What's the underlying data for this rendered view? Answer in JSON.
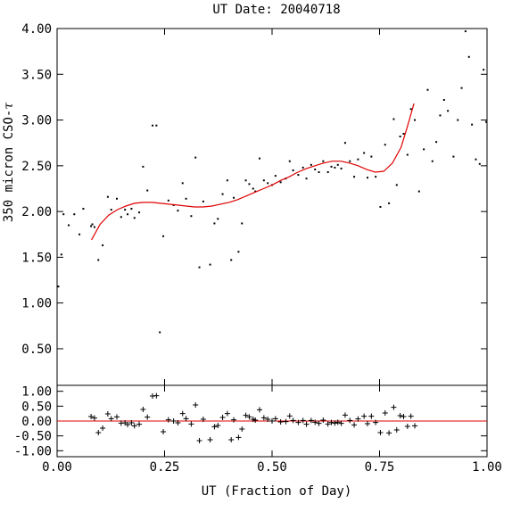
{
  "chart_data": {
    "title": "UT Date: 20040718",
    "xlabel": "UT (Fraction of Day)",
    "ylabel_text": "350 micron CSO-",
    "ylabel_symbol": "τ",
    "colors": {
      "fit": "#e00000",
      "zero_line": "#e00000",
      "points": "#000000",
      "frame": "#000000"
    },
    "panels": [
      {
        "name": "top",
        "type": "scatter",
        "xlim": [
          0.0,
          1.0
        ],
        "ylim": [
          0.1,
          4.0
        ],
        "xticks": [
          0.0,
          0.25,
          0.5,
          0.75,
          1.0
        ],
        "yticks": [
          0.5,
          1.0,
          1.5,
          2.0,
          2.5,
          3.0,
          3.5,
          4.0
        ],
        "ytick_labels": [
          "0.50",
          "1.00",
          "1.50",
          "2.00",
          "2.50",
          "3.00",
          "3.50",
          "4.00"
        ],
        "points": [
          [
            0.003,
            1.18
          ],
          [
            0.01,
            1.53
          ],
          [
            0.015,
            1.97
          ],
          [
            0.027,
            1.85
          ],
          [
            0.04,
            1.97
          ],
          [
            0.052,
            1.75
          ],
          [
            0.061,
            2.03
          ],
          [
            0.079,
            1.84
          ],
          [
            0.082,
            1.86
          ],
          [
            0.087,
            1.83
          ],
          [
            0.096,
            1.47
          ],
          [
            0.106,
            1.63
          ],
          [
            0.118,
            2.16
          ],
          [
            0.126,
            2.02
          ],
          [
            0.139,
            2.14
          ],
          [
            0.149,
            1.94
          ],
          [
            0.158,
            2.02
          ],
          [
            0.164,
            1.97
          ],
          [
            0.173,
            2.03
          ],
          [
            0.18,
            1.93
          ],
          [
            0.191,
            1.99
          ],
          [
            0.2,
            2.49
          ],
          [
            0.21,
            2.23
          ],
          [
            0.222,
            2.94
          ],
          [
            0.231,
            2.94
          ],
          [
            0.239,
            0.68
          ],
          [
            0.247,
            1.73
          ],
          [
            0.259,
            2.12
          ],
          [
            0.271,
            2.07
          ],
          [
            0.281,
            2.01
          ],
          [
            0.292,
            2.31
          ],
          [
            0.3,
            2.14
          ],
          [
            0.312,
            1.95
          ],
          [
            0.322,
            2.59
          ],
          [
            0.331,
            1.39
          ],
          [
            0.34,
            2.11
          ],
          [
            0.356,
            1.42
          ],
          [
            0.366,
            1.87
          ],
          [
            0.374,
            1.92
          ],
          [
            0.385,
            2.19
          ],
          [
            0.396,
            2.34
          ],
          [
            0.405,
            1.47
          ],
          [
            0.411,
            2.15
          ],
          [
            0.422,
            1.56
          ],
          [
            0.43,
            1.87
          ],
          [
            0.439,
            2.34
          ],
          [
            0.447,
            2.3
          ],
          [
            0.456,
            2.25
          ],
          [
            0.461,
            2.22
          ],
          [
            0.471,
            2.58
          ],
          [
            0.481,
            2.34
          ],
          [
            0.49,
            2.31
          ],
          [
            0.5,
            2.29
          ],
          [
            0.508,
            2.39
          ],
          [
            0.52,
            2.32
          ],
          [
            0.532,
            2.36
          ],
          [
            0.541,
            2.55
          ],
          [
            0.549,
            2.45
          ],
          [
            0.561,
            2.4
          ],
          [
            0.572,
            2.48
          ],
          [
            0.58,
            2.36
          ],
          [
            0.591,
            2.51
          ],
          [
            0.6,
            2.46
          ],
          [
            0.609,
            2.43
          ],
          [
            0.619,
            2.55
          ],
          [
            0.63,
            2.43
          ],
          [
            0.638,
            2.49
          ],
          [
            0.646,
            2.48
          ],
          [
            0.653,
            2.51
          ],
          [
            0.661,
            2.47
          ],
          [
            0.67,
            2.75
          ],
          [
            0.681,
            2.55
          ],
          [
            0.691,
            2.38
          ],
          [
            0.7,
            2.57
          ],
          [
            0.714,
            2.64
          ],
          [
            0.722,
            2.37
          ],
          [
            0.731,
            2.6
          ],
          [
            0.741,
            2.38
          ],
          [
            0.752,
            2.05
          ],
          [
            0.763,
            2.73
          ],
          [
            0.772,
            2.09
          ],
          [
            0.783,
            3.01
          ],
          [
            0.79,
            2.29
          ],
          [
            0.798,
            2.82
          ],
          [
            0.806,
            2.85
          ],
          [
            0.815,
            2.62
          ],
          [
            0.823,
            3.12
          ],
          [
            0.832,
            3.0
          ],
          [
            0.842,
            2.22
          ],
          [
            0.853,
            2.68
          ],
          [
            0.862,
            3.33
          ],
          [
            0.873,
            2.55
          ],
          [
            0.882,
            2.76
          ],
          [
            0.891,
            3.05
          ],
          [
            0.9,
            3.22
          ],
          [
            0.909,
            3.1
          ],
          [
            0.922,
            2.6
          ],
          [
            0.932,
            3.0
          ],
          [
            0.941,
            3.35
          ],
          [
            0.95,
            3.97
          ],
          [
            0.958,
            3.69
          ],
          [
            0.965,
            2.95
          ],
          [
            0.974,
            2.57
          ],
          [
            0.983,
            2.52
          ],
          [
            0.992,
            3.55
          ],
          [
            0.998,
            2.98
          ]
        ],
        "fit_curve": [
          [
            0.08,
            1.69
          ],
          [
            0.1,
            1.86
          ],
          [
            0.12,
            1.96
          ],
          [
            0.14,
            2.02
          ],
          [
            0.16,
            2.06
          ],
          [
            0.18,
            2.09
          ],
          [
            0.2,
            2.1
          ],
          [
            0.22,
            2.1
          ],
          [
            0.24,
            2.09
          ],
          [
            0.26,
            2.08
          ],
          [
            0.28,
            2.07
          ],
          [
            0.3,
            2.06
          ],
          [
            0.32,
            2.05
          ],
          [
            0.34,
            2.05
          ],
          [
            0.36,
            2.06
          ],
          [
            0.38,
            2.08
          ],
          [
            0.4,
            2.1
          ],
          [
            0.42,
            2.13
          ],
          [
            0.44,
            2.17
          ],
          [
            0.46,
            2.21
          ],
          [
            0.48,
            2.25
          ],
          [
            0.5,
            2.29
          ],
          [
            0.52,
            2.34
          ],
          [
            0.54,
            2.38
          ],
          [
            0.56,
            2.43
          ],
          [
            0.58,
            2.47
          ],
          [
            0.6,
            2.5
          ],
          [
            0.62,
            2.53
          ],
          [
            0.64,
            2.55
          ],
          [
            0.66,
            2.55
          ],
          [
            0.68,
            2.53
          ],
          [
            0.7,
            2.5
          ],
          [
            0.72,
            2.46
          ],
          [
            0.74,
            2.43
          ],
          [
            0.76,
            2.44
          ],
          [
            0.78,
            2.53
          ],
          [
            0.8,
            2.7
          ],
          [
            0.815,
            2.93
          ],
          [
            0.83,
            3.18
          ]
        ]
      },
      {
        "name": "bottom",
        "type": "scatter",
        "xlim": [
          0.0,
          1.0
        ],
        "ylim": [
          -1.2,
          1.2
        ],
        "xticks": [
          0.0,
          0.25,
          0.5,
          0.75,
          1.0
        ],
        "xtick_labels": [
          "0.00",
          "0.25",
          "0.50",
          "0.75",
          "1.00"
        ],
        "yticks": [
          -1.0,
          -0.5,
          0.0,
          0.5,
          1.0
        ],
        "ytick_labels": [
          "-1.00",
          "-0.50",
          "0.00",
          "0.50",
          "1.00"
        ],
        "zero_line": 0.0,
        "residuals": [
          [
            0.079,
            0.15
          ],
          [
            0.087,
            0.1
          ],
          [
            0.096,
            -0.39
          ],
          [
            0.106,
            -0.24
          ],
          [
            0.118,
            0.24
          ],
          [
            0.126,
            0.08
          ],
          [
            0.139,
            0.14
          ],
          [
            0.149,
            -0.07
          ],
          [
            0.158,
            -0.06
          ],
          [
            0.164,
            -0.12
          ],
          [
            0.173,
            -0.06
          ],
          [
            0.18,
            -0.16
          ],
          [
            0.191,
            -0.11
          ],
          [
            0.2,
            0.39
          ],
          [
            0.21,
            0.13
          ],
          [
            0.222,
            0.84
          ],
          [
            0.231,
            0.85
          ],
          [
            0.247,
            -0.36
          ],
          [
            0.259,
            0.04
          ],
          [
            0.271,
            0.0
          ],
          [
            0.281,
            -0.06
          ],
          [
            0.292,
            0.25
          ],
          [
            0.3,
            0.08
          ],
          [
            0.312,
            -0.1
          ],
          [
            0.322,
            0.54
          ],
          [
            0.331,
            -0.66
          ],
          [
            0.34,
            0.06
          ],
          [
            0.356,
            -0.63
          ],
          [
            0.366,
            -0.19
          ],
          [
            0.374,
            -0.15
          ],
          [
            0.385,
            0.12
          ],
          [
            0.396,
            0.25
          ],
          [
            0.405,
            -0.63
          ],
          [
            0.411,
            0.04
          ],
          [
            0.422,
            -0.55
          ],
          [
            0.43,
            -0.27
          ],
          [
            0.439,
            0.19
          ],
          [
            0.447,
            0.14
          ],
          [
            0.456,
            0.06
          ],
          [
            0.461,
            0.03
          ],
          [
            0.471,
            0.38
          ],
          [
            0.481,
            0.11
          ],
          [
            0.49,
            0.06
          ],
          [
            0.5,
            0.0
          ],
          [
            0.508,
            0.08
          ],
          [
            0.52,
            -0.03
          ],
          [
            0.532,
            -0.02
          ],
          [
            0.541,
            0.17
          ],
          [
            0.549,
            0.02
          ],
          [
            0.561,
            -0.05
          ],
          [
            0.572,
            0.02
          ],
          [
            0.58,
            -0.11
          ],
          [
            0.591,
            0.02
          ],
          [
            0.6,
            -0.04
          ],
          [
            0.609,
            -0.08
          ],
          [
            0.619,
            0.03
          ],
          [
            0.63,
            -0.1
          ],
          [
            0.638,
            -0.05
          ],
          [
            0.646,
            -0.07
          ],
          [
            0.653,
            -0.04
          ],
          [
            0.661,
            -0.08
          ],
          [
            0.67,
            0.2
          ],
          [
            0.681,
            0.02
          ],
          [
            0.691,
            -0.13
          ],
          [
            0.7,
            0.07
          ],
          [
            0.714,
            0.16
          ],
          [
            0.722,
            -0.09
          ],
          [
            0.731,
            0.16
          ],
          [
            0.741,
            -0.05
          ],
          [
            0.752,
            -0.39
          ],
          [
            0.763,
            0.27
          ],
          [
            0.772,
            -0.4
          ],
          [
            0.783,
            0.46
          ],
          [
            0.79,
            -0.3
          ],
          [
            0.798,
            0.18
          ],
          [
            0.806,
            0.15
          ],
          [
            0.815,
            -0.18
          ],
          [
            0.823,
            0.16
          ],
          [
            0.832,
            -0.16
          ]
        ]
      }
    ]
  }
}
